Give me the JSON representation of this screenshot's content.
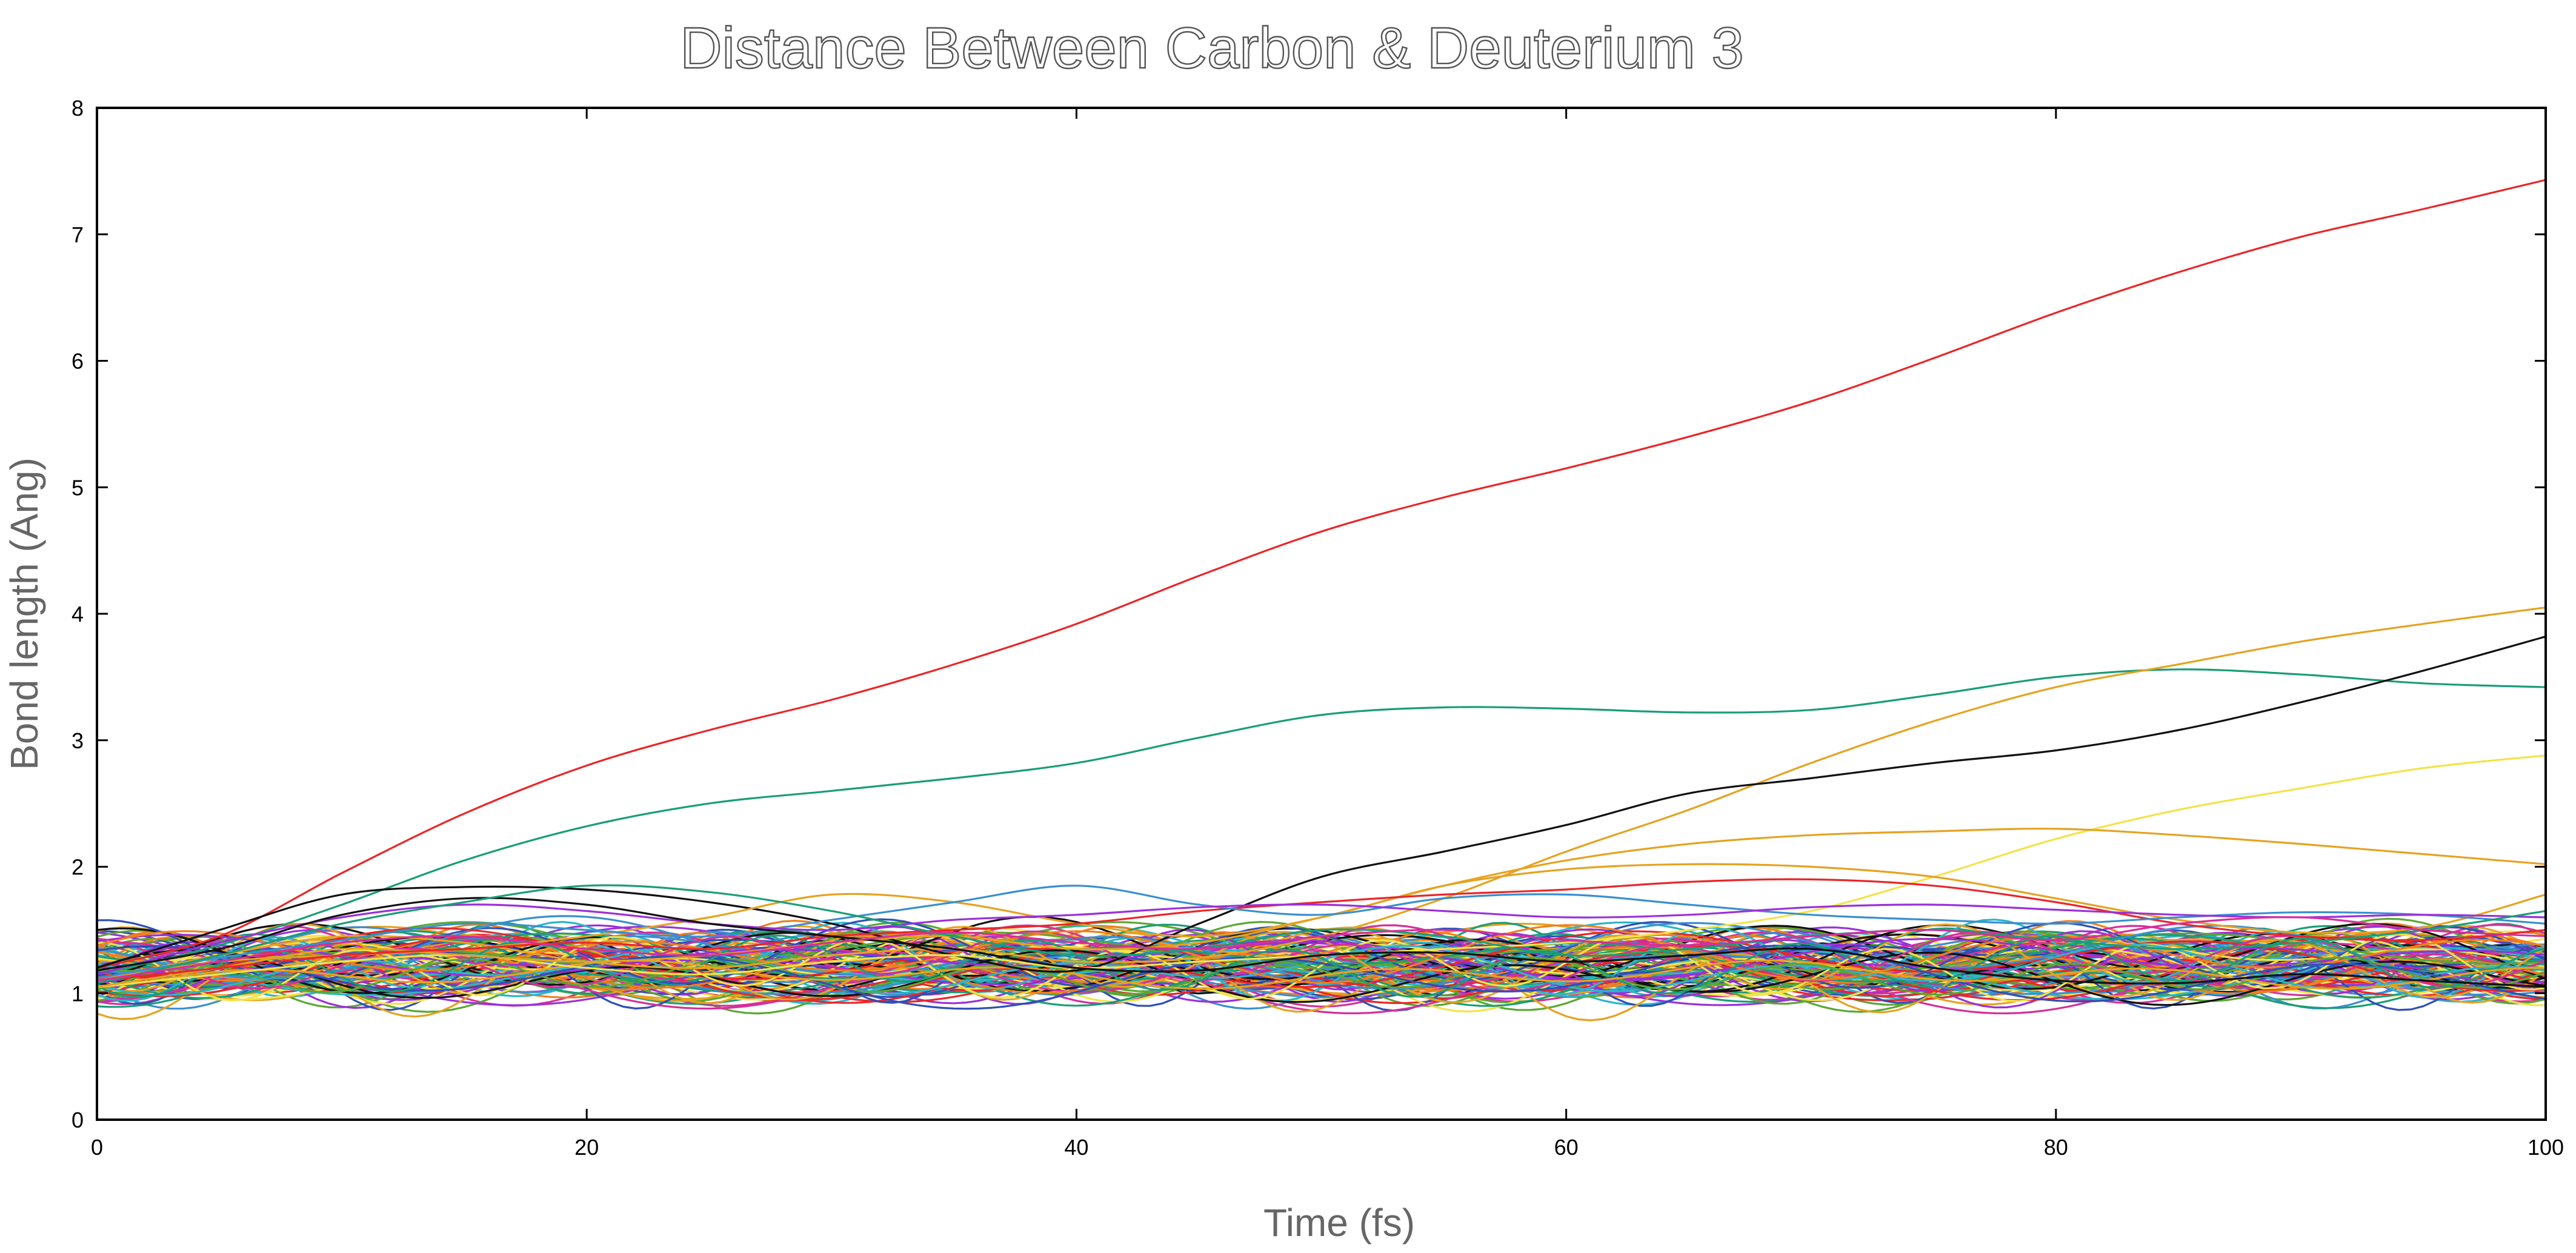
{
  "chart_data": {
    "type": "line",
    "title": "Distance Between Carbon & Deuterium 3",
    "xlabel": "Time (fs)",
    "ylabel": "Bond length (Ang)",
    "xlim": [
      0,
      100
    ],
    "ylim": [
      0,
      8
    ],
    "xticks": [
      0,
      20,
      40,
      60,
      80,
      100
    ],
    "yticks": [
      0,
      1,
      2,
      3,
      4,
      5,
      6,
      7,
      8
    ],
    "grid": false,
    "legend": "none",
    "note": "Bundle of many overlapping trajectories; highlighted series listed explicitly, remaining trajectories oscillate between roughly 0.95 and 1.9 Ang.",
    "x": [
      0,
      5,
      10,
      15,
      20,
      25,
      30,
      35,
      40,
      45,
      50,
      55,
      60,
      65,
      70,
      75,
      80,
      85,
      90,
      95,
      100
    ],
    "series": [
      {
        "color": "#e8272a",
        "values": [
          1.2,
          1.45,
          1.95,
          2.42,
          2.8,
          3.08,
          3.32,
          3.6,
          3.92,
          4.3,
          4.65,
          4.92,
          5.15,
          5.4,
          5.68,
          6.02,
          6.38,
          6.7,
          6.98,
          7.2,
          7.43
        ]
      },
      {
        "color": "#1a9e77",
        "values": [
          1.15,
          1.38,
          1.7,
          2.05,
          2.32,
          2.5,
          2.6,
          2.7,
          2.82,
          3.02,
          3.2,
          3.26,
          3.25,
          3.22,
          3.24,
          3.36,
          3.5,
          3.56,
          3.52,
          3.45,
          3.42
        ]
      },
      {
        "color": "#e6a220",
        "values": [
          1.1,
          1.3,
          1.45,
          1.4,
          1.25,
          1.2,
          1.3,
          1.35,
          1.25,
          1.28,
          1.45,
          1.75,
          2.12,
          2.45,
          2.82,
          3.15,
          3.42,
          3.6,
          3.78,
          3.92,
          4.05
        ]
      },
      {
        "color": "#111111",
        "values": [
          1.2,
          1.5,
          1.78,
          1.84,
          1.82,
          1.72,
          1.55,
          1.3,
          1.18,
          1.55,
          1.92,
          2.12,
          2.33,
          2.58,
          2.7,
          2.82,
          2.92,
          3.08,
          3.3,
          3.55,
          3.82
        ]
      },
      {
        "color": "#f2e34a",
        "values": [
          1.05,
          1.15,
          1.25,
          1.3,
          1.2,
          1.15,
          1.25,
          1.3,
          1.2,
          1.25,
          1.3,
          1.35,
          1.4,
          1.5,
          1.65,
          1.92,
          2.22,
          2.45,
          2.62,
          2.78,
          2.88
        ]
      },
      {
        "color": "#e6a220",
        "values": [
          1.05,
          1.2,
          1.35,
          1.3,
          1.25,
          1.3,
          1.4,
          1.45,
          1.35,
          1.4,
          1.6,
          1.85,
          2.05,
          2.18,
          2.25,
          2.28,
          2.3,
          2.25,
          2.18,
          2.1,
          2.02
        ]
      },
      {
        "color": "#e6a220",
        "values": [
          1.1,
          1.25,
          1.3,
          1.35,
          1.45,
          1.6,
          1.78,
          1.72,
          1.55,
          1.45,
          1.6,
          1.85,
          1.98,
          2.02,
          2.0,
          1.92,
          1.75,
          1.58,
          1.48,
          1.52,
          1.78
        ]
      },
      {
        "color": "#e8272a",
        "values": [
          1.1,
          1.2,
          1.3,
          1.35,
          1.4,
          1.35,
          1.45,
          1.5,
          1.55,
          1.65,
          1.72,
          1.78,
          1.82,
          1.88,
          1.9,
          1.85,
          1.72,
          1.55,
          1.45,
          1.42,
          1.5
        ]
      },
      {
        "color": "#3a8fd0",
        "values": [
          1.12,
          1.28,
          1.42,
          1.55,
          1.5,
          1.45,
          1.58,
          1.72,
          1.85,
          1.7,
          1.62,
          1.75,
          1.78,
          1.7,
          1.62,
          1.58,
          1.55,
          1.6,
          1.64,
          1.62,
          1.55
        ]
      },
      {
        "color": "#9b30d9",
        "values": [
          1.15,
          1.4,
          1.6,
          1.7,
          1.65,
          1.55,
          1.5,
          1.58,
          1.62,
          1.68,
          1.7,
          1.65,
          1.6,
          1.62,
          1.68,
          1.7,
          1.66,
          1.62,
          1.6,
          1.62,
          1.6
        ]
      },
      {
        "color": "#111111",
        "values": [
          1.18,
          1.35,
          1.62,
          1.75,
          1.7,
          1.55,
          1.45,
          1.35,
          1.2,
          1.18,
          1.3,
          1.32,
          1.25,
          1.3,
          1.35,
          1.2,
          1.1,
          1.08,
          1.15,
          1.1,
          1.05
        ]
      },
      {
        "color": "#1a9e77",
        "values": [
          1.08,
          1.3,
          1.55,
          1.72,
          1.85,
          1.8,
          1.65,
          1.45,
          1.3,
          1.35,
          1.5,
          1.45,
          1.3,
          1.35,
          1.45,
          1.5,
          1.42,
          1.35,
          1.4,
          1.5,
          1.65
        ]
      },
      {
        "color": "#d6309a",
        "values": [
          1.1,
          1.25,
          1.4,
          1.45,
          1.35,
          1.3,
          1.4,
          1.48,
          1.4,
          1.35,
          1.45,
          1.5,
          1.42,
          1.38,
          1.45,
          1.5,
          1.42,
          1.55,
          1.6,
          1.5,
          1.45
        ]
      }
    ]
  }
}
